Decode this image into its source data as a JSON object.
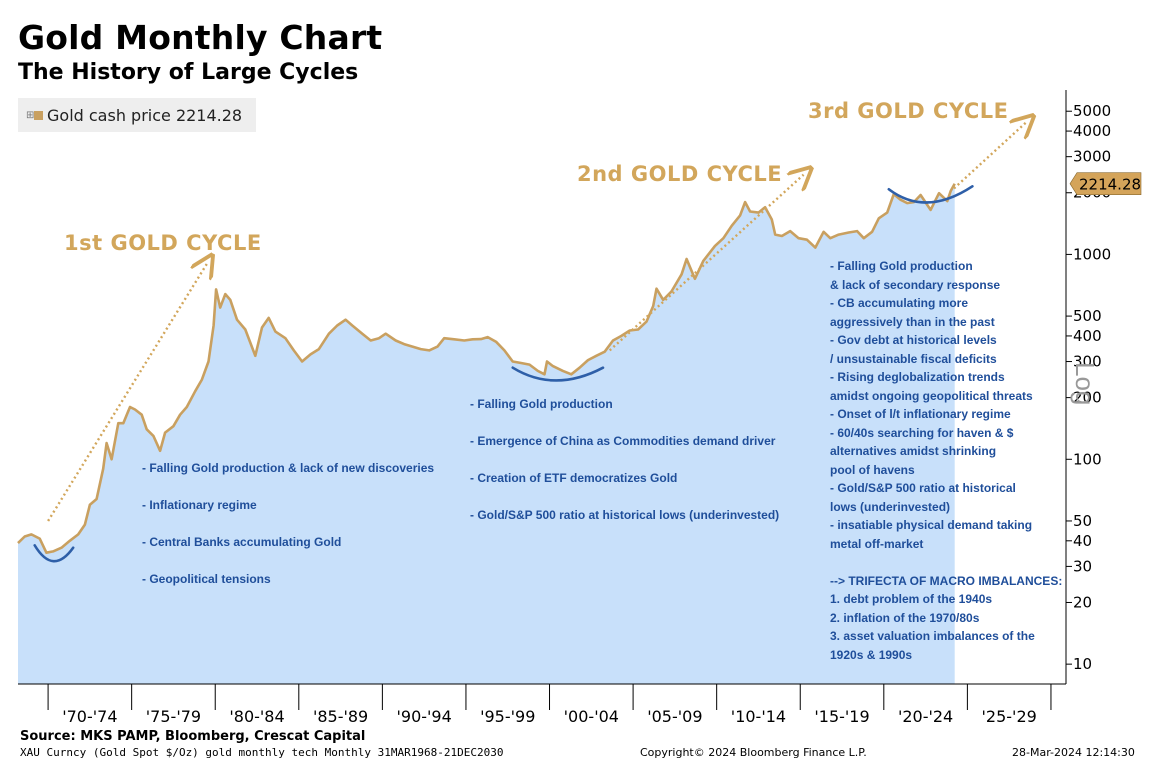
{
  "header": {
    "title": "Gold Monthly Chart",
    "subtitle": "The History of Large Cycles"
  },
  "legend": {
    "label": "Gold cash price 2214.28",
    "color": "#c9a060"
  },
  "cycles": {
    "first": "1st GOLD CYCLE",
    "second": "2nd GOLD CYCLE",
    "third": "3rd GOLD CYCLE"
  },
  "notes": {
    "cycle1": [
      "- Falling Gold production & lack of new discoveries",
      "- Inflationary regime",
      "- Central Banks accumulating Gold",
      "- Geopolitical tensions"
    ],
    "cycle2": [
      "- Falling Gold production",
      "- Emergence of China as Commodities demand driver",
      "- Creation of ETF democratizes Gold",
      "- Gold/S&P 500 ratio at historical lows (underinvested)"
    ],
    "cycle3": [
      "- Falling Gold production",
      "& lack of secondary response",
      "- CB accumulating more",
      " aggressively than in the past",
      "- Gov debt at historical levels",
      "/ unsustainable fiscal deficits",
      "- Rising deglobalization trends",
      "amidst ongoing geopolitical threats",
      "- Onset of l/t inflationary regime",
      "- 60/40s searching for haven & $",
      "alternatives amidst shrinking",
      "pool of havens",
      "- Gold/S&P 500 ratio at historical",
      "lows (underinvested)",
      "- insatiable physical demand taking",
      "metal off-market",
      "",
      "--> TRIFECTA OF MACRO IMBALANCES:",
      "1. debt problem of the 1940s",
      "2. inflation of the 1970/80s",
      "3. asset valuation imbalances of the",
      "1920s & 1990s"
    ]
  },
  "footer": {
    "source": "Source: MKS PAMP, Bloomberg, Crescat Capital",
    "ticker": "XAU Curncy (Gold Spot  $/Oz) gold monthly tech  Monthly 31MAR1968-21DEC2030",
    "copyright": "Copyright© 2024 Bloomberg Finance L.P.",
    "timestamp": "28-Mar-2024 12:14:30"
  },
  "yaxis_label": "Log",
  "price_tag": "2214.28",
  "chart_data": {
    "type": "area",
    "scale": "log",
    "title": "Gold Monthly Chart",
    "subtitle": "The History of Large Cycles",
    "ylabel": "Log",
    "ylim": [
      8,
      6000
    ],
    "xlim": [
      1968.2,
      2030.9
    ],
    "yticks": [
      10,
      20,
      30,
      40,
      50,
      100,
      200,
      300,
      400,
      500,
      1000,
      2000,
      3000,
      4000,
      5000
    ],
    "xtick_labels": [
      "'70-'74",
      "'75-'79",
      "'80-'84",
      "'85-'89",
      "'90-'94",
      "'95-'99",
      "'00-'04",
      "'05-'09",
      "'10-'14",
      "'15-'19",
      "'20-'24",
      "'25-'29"
    ],
    "xtick_years": [
      1970,
      1975,
      1980,
      1985,
      1990,
      1995,
      2000,
      2005,
      2010,
      2015,
      2020,
      2025,
      2030
    ],
    "fill_color": "#c8e0fa",
    "line_color": "#c9a060",
    "series": [
      {
        "name": "Gold cash price",
        "last": 2214.28,
        "points": [
          [
            1968.2,
            39
          ],
          [
            1968.6,
            42
          ],
          [
            1969.0,
            43
          ],
          [
            1969.5,
            41
          ],
          [
            1969.9,
            35
          ],
          [
            1970.3,
            35.5
          ],
          [
            1970.8,
            37
          ],
          [
            1971.3,
            40
          ],
          [
            1971.8,
            43
          ],
          [
            1972.2,
            48
          ],
          [
            1972.5,
            60
          ],
          [
            1972.9,
            64
          ],
          [
            1973.3,
            90
          ],
          [
            1973.5,
            120
          ],
          [
            1973.8,
            100
          ],
          [
            1974.2,
            150
          ],
          [
            1974.5,
            150
          ],
          [
            1974.9,
            180
          ],
          [
            1975.2,
            175
          ],
          [
            1975.6,
            165
          ],
          [
            1975.9,
            140
          ],
          [
            1976.3,
            130
          ],
          [
            1976.7,
            110
          ],
          [
            1977.0,
            135
          ],
          [
            1977.5,
            145
          ],
          [
            1977.9,
            165
          ],
          [
            1978.3,
            180
          ],
          [
            1978.8,
            215
          ],
          [
            1979.2,
            245
          ],
          [
            1979.6,
            300
          ],
          [
            1979.9,
            450
          ],
          [
            1980.05,
            675
          ],
          [
            1980.3,
            550
          ],
          [
            1980.6,
            640
          ],
          [
            1980.9,
            600
          ],
          [
            1981.3,
            480
          ],
          [
            1981.8,
            430
          ],
          [
            1982.4,
            320
          ],
          [
            1982.8,
            440
          ],
          [
            1983.2,
            490
          ],
          [
            1983.6,
            420
          ],
          [
            1984.2,
            390
          ],
          [
            1984.7,
            340
          ],
          [
            1985.2,
            300
          ],
          [
            1985.7,
            325
          ],
          [
            1986.2,
            345
          ],
          [
            1986.8,
            410
          ],
          [
            1987.3,
            450
          ],
          [
            1987.8,
            480
          ],
          [
            1988.2,
            450
          ],
          [
            1988.8,
            410
          ],
          [
            1989.3,
            380
          ],
          [
            1989.8,
            390
          ],
          [
            1990.2,
            410
          ],
          [
            1990.8,
            380
          ],
          [
            1991.3,
            365
          ],
          [
            1991.8,
            355
          ],
          [
            1992.3,
            345
          ],
          [
            1992.8,
            340
          ],
          [
            1993.3,
            355
          ],
          [
            1993.7,
            390
          ],
          [
            1994.3,
            385
          ],
          [
            1994.9,
            380
          ],
          [
            1995.4,
            385
          ],
          [
            1995.9,
            386
          ],
          [
            1996.3,
            395
          ],
          [
            1996.8,
            375
          ],
          [
            1997.3,
            340
          ],
          [
            1997.8,
            300
          ],
          [
            1998.3,
            295
          ],
          [
            1998.8,
            290
          ],
          [
            1999.3,
            270
          ],
          [
            1999.7,
            260
          ],
          [
            1999.85,
            300
          ],
          [
            2000.2,
            285
          ],
          [
            2000.8,
            270
          ],
          [
            2001.3,
            260
          ],
          [
            2001.8,
            280
          ],
          [
            2002.3,
            305
          ],
          [
            2002.8,
            320
          ],
          [
            2003.3,
            335
          ],
          [
            2003.8,
            380
          ],
          [
            2004.3,
            400
          ],
          [
            2004.8,
            425
          ],
          [
            2005.3,
            430
          ],
          [
            2005.8,
            470
          ],
          [
            2006.2,
            560
          ],
          [
            2006.4,
            680
          ],
          [
            2006.8,
            600
          ],
          [
            2007.3,
            660
          ],
          [
            2007.9,
            800
          ],
          [
            2008.2,
            950
          ],
          [
            2008.7,
            760
          ],
          [
            2009.2,
            930
          ],
          [
            2009.9,
            1100
          ],
          [
            2010.4,
            1200
          ],
          [
            2010.9,
            1380
          ],
          [
            2011.4,
            1550
          ],
          [
            2011.7,
            1800
          ],
          [
            2012.0,
            1620
          ],
          [
            2012.5,
            1600
          ],
          [
            2012.9,
            1700
          ],
          [
            2013.3,
            1480
          ],
          [
            2013.5,
            1250
          ],
          [
            2013.9,
            1230
          ],
          [
            2014.4,
            1300
          ],
          [
            2014.9,
            1200
          ],
          [
            2015.4,
            1180
          ],
          [
            2015.9,
            1080
          ],
          [
            2016.4,
            1290
          ],
          [
            2016.8,
            1200
          ],
          [
            2017.3,
            1250
          ],
          [
            2017.9,
            1280
          ],
          [
            2018.4,
            1300
          ],
          [
            2018.8,
            1200
          ],
          [
            2019.3,
            1290
          ],
          [
            2019.7,
            1500
          ],
          [
            2020.2,
            1600
          ],
          [
            2020.6,
            1970
          ],
          [
            2021.0,
            1850
          ],
          [
            2021.4,
            1780
          ],
          [
            2021.8,
            1800
          ],
          [
            2022.2,
            1950
          ],
          [
            2022.8,
            1650
          ],
          [
            2023.3,
            1990
          ],
          [
            2023.8,
            1820
          ],
          [
            2024.0,
            2040
          ],
          [
            2024.24,
            2214.28
          ]
        ]
      }
    ],
    "annotations": [
      "1st GOLD CYCLE",
      "2nd GOLD CYCLE",
      "3rd GOLD CYCLE"
    ]
  }
}
